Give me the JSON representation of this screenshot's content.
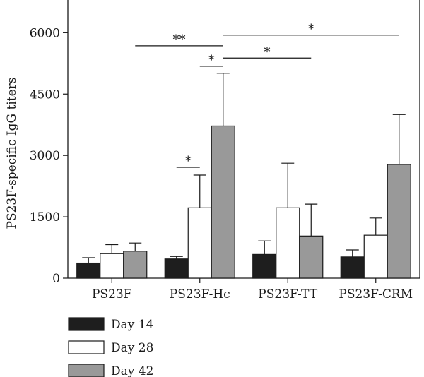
{
  "chart_data": {
    "type": "bar",
    "title": "",
    "xlabel": "",
    "ylabel": "PS23F-specific IgG titers",
    "ylim": [
      0,
      6800
    ],
    "yticks": [
      0,
      1500,
      3000,
      4500,
      6000
    ],
    "grid": false,
    "legend_position": "bottom-left",
    "categories": [
      "PS23F",
      "PS23F-Hc",
      "PS23F-TT",
      "PS23F-CRM"
    ],
    "series": [
      {
        "name": "Day 14",
        "color": "#1e1e1e",
        "values": [
          370,
          470,
          580,
          520
        ],
        "errors": [
          130,
          60,
          330,
          170
        ]
      },
      {
        "name": "Day 28",
        "color": "#ffffff",
        "values": [
          600,
          1720,
          1720,
          1050
        ],
        "errors": [
          220,
          800,
          1090,
          420
        ]
      },
      {
        "name": "Day 42",
        "color": "#999999",
        "values": [
          660,
          3720,
          1030,
          2780
        ],
        "errors": [
          200,
          1290,
          780,
          1220
        ]
      }
    ],
    "significance": [
      {
        "label": "*",
        "from": [
          1,
          0
        ],
        "to": [
          1,
          1
        ],
        "y": 2710
      },
      {
        "label": "*",
        "from": [
          1,
          1
        ],
        "to": [
          1,
          2
        ],
        "y": 5180
      },
      {
        "label": "**",
        "from": [
          0,
          2
        ],
        "to": [
          1,
          2
        ],
        "y": 5680
      },
      {
        "label": "*",
        "from": [
          1,
          2
        ],
        "to": [
          2,
          2
        ],
        "y": 5380
      },
      {
        "label": "*",
        "from": [
          1,
          2
        ],
        "to": [
          3,
          2
        ],
        "y": 5940
      }
    ]
  }
}
